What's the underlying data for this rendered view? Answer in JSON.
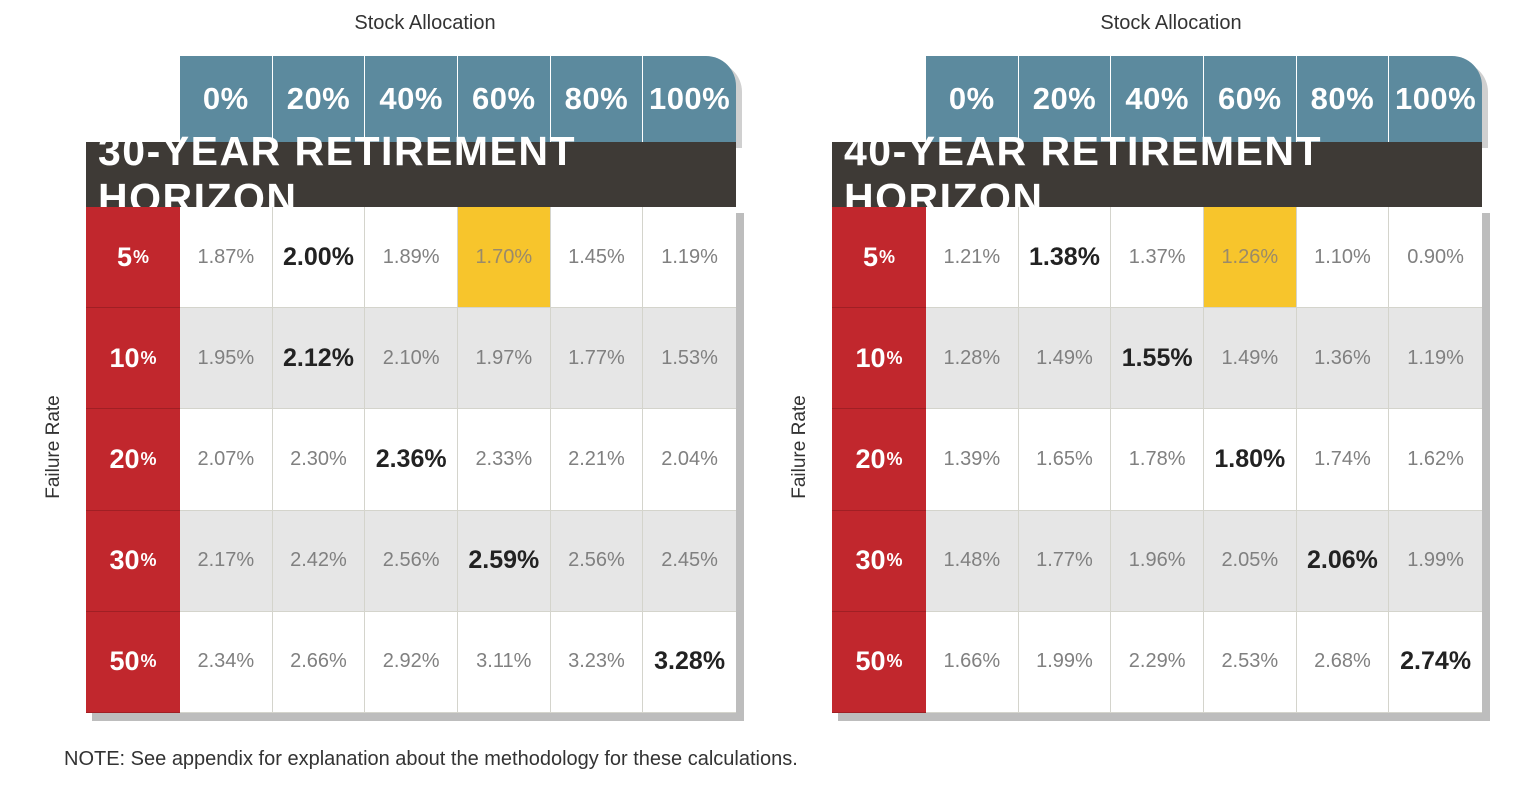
{
  "chart_data": [
    {
      "type": "table",
      "title": "30-YEAR RETIREMENT HORIZON",
      "xlabel": "Stock Allocation",
      "ylabel": "Failure Rate",
      "columns": [
        "0%",
        "20%",
        "40%",
        "60%",
        "80%",
        "100%"
      ],
      "rows": [
        "5",
        "10",
        "20",
        "30",
        "50"
      ],
      "values": [
        [
          "1.87%",
          "2.00%",
          "1.89%",
          "1.70%",
          "1.45%",
          "1.19%"
        ],
        [
          "1.95%",
          "2.12%",
          "2.10%",
          "1.97%",
          "1.77%",
          "1.53%"
        ],
        [
          "2.07%",
          "2.30%",
          "2.36%",
          "2.33%",
          "2.21%",
          "2.04%"
        ],
        [
          "2.17%",
          "2.42%",
          "2.56%",
          "2.59%",
          "2.56%",
          "2.45%"
        ],
        [
          "2.34%",
          "2.66%",
          "2.92%",
          "3.11%",
          "3.23%",
          "3.28%"
        ]
      ],
      "bold": [
        1,
        1,
        2,
        3,
        5
      ],
      "highlight": [
        0,
        3
      ]
    },
    {
      "type": "table",
      "title": "40-YEAR RETIREMENT HORIZON",
      "xlabel": "Stock Allocation",
      "ylabel": "Failure Rate",
      "columns": [
        "0%",
        "20%",
        "40%",
        "60%",
        "80%",
        "100%"
      ],
      "rows": [
        "5",
        "10",
        "20",
        "30",
        "50"
      ],
      "values": [
        [
          "1.21%",
          "1.38%",
          "1.37%",
          "1.26%",
          "1.10%",
          "0.90%"
        ],
        [
          "1.28%",
          "1.49%",
          "1.55%",
          "1.49%",
          "1.36%",
          "1.19%"
        ],
        [
          "1.39%",
          "1.65%",
          "1.78%",
          "1.80%",
          "1.74%",
          "1.62%"
        ],
        [
          "1.48%",
          "1.77%",
          "1.96%",
          "2.05%",
          "2.06%",
          "1.99%"
        ],
        [
          "1.66%",
          "1.99%",
          "2.29%",
          "2.53%",
          "2.68%",
          "2.74%"
        ]
      ],
      "bold": [
        1,
        2,
        3,
        4,
        5
      ],
      "highlight": [
        0,
        3
      ]
    }
  ],
  "note": "NOTE: See appendix for explanation about the methodology for these calculations.",
  "colors": {
    "header": "#5c8a9e",
    "title_bar": "#3e3a36",
    "row_label": "#c1272d",
    "highlight": "#f7c52c"
  }
}
